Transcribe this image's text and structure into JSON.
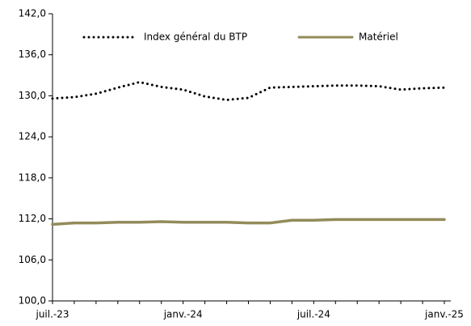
{
  "chart_data": {
    "type": "line",
    "categories": [
      "juil.-23",
      null,
      null,
      null,
      null,
      null,
      "janv.-24",
      null,
      null,
      null,
      null,
      null,
      "juil.-24",
      null,
      null,
      null,
      null,
      null,
      "janv.-25"
    ],
    "series": [
      {
        "name": "Index général du BTP",
        "color": "#000000",
        "dash": "dotted",
        "values": [
          129.6,
          129.8,
          130.3,
          131.2,
          132.0,
          131.3,
          130.9,
          129.9,
          129.4,
          129.7,
          131.2,
          131.3,
          131.4,
          131.5,
          131.5,
          131.4,
          130.9,
          131.1,
          131.2
        ]
      },
      {
        "name": "Matériel",
        "color": "#938b5a",
        "dash": "solid",
        "values": [
          111.2,
          111.4,
          111.4,
          111.5,
          111.5,
          111.6,
          111.5,
          111.5,
          111.5,
          111.4,
          111.4,
          111.8,
          111.8,
          111.9,
          111.9,
          111.9,
          111.9,
          111.9,
          111.9
        ]
      }
    ],
    "ylim": [
      100,
      142
    ],
    "yticks": [
      {
        "value": 100,
        "label": "100,0"
      },
      {
        "value": 106,
        "label": "106,0"
      },
      {
        "value": 112,
        "label": "112,0"
      },
      {
        "value": 118,
        "label": "118,0"
      },
      {
        "value": 124,
        "label": "124,0"
      },
      {
        "value": 130,
        "label": "130,0"
      },
      {
        "value": 136,
        "label": "136,0"
      },
      {
        "value": 142,
        "label": "142,0"
      }
    ],
    "legend": "top"
  }
}
